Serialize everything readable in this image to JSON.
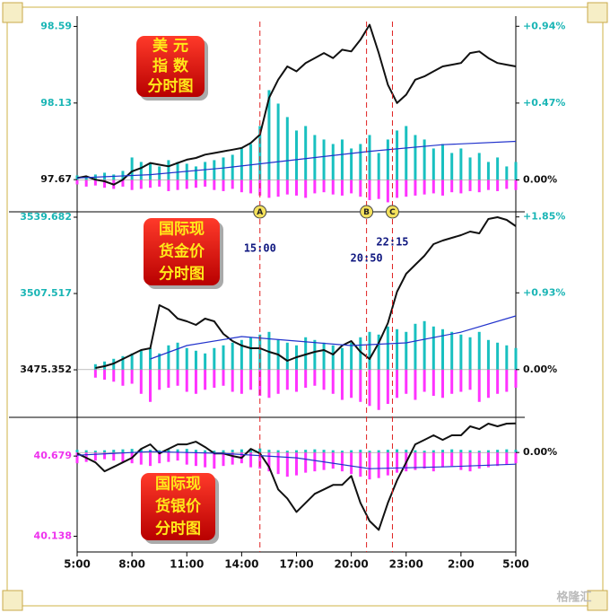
{
  "chart_data": [
    {
      "type": "line",
      "title": [
        "美  元",
        "指  数",
        "分时图"
      ],
      "ylim": [
        97.59,
        98.63
      ],
      "yticks": [
        97.67,
        98.13,
        98.59
      ],
      "y2lim": [
        -0.08,
        0.98
      ],
      "y2ticks": [
        {
          "value": 0,
          "label": "0.00%"
        },
        {
          "value": 0.47,
          "label": "+0.47%"
        },
        {
          "value": 0.94,
          "label": "+0.94%"
        }
      ],
      "tick_color": "#1ab5b5",
      "x": [
        0,
        0.5,
        1,
        1.5,
        2,
        2.5,
        3,
        3.5,
        4,
        4.5,
        5,
        5.5,
        6,
        6.5,
        7,
        7.5,
        8,
        8.5,
        9,
        9.5,
        10,
        10.5,
        11,
        11.5,
        12,
        12.5,
        13,
        13.5,
        14,
        14.5,
        15,
        15.5,
        16,
        16.5,
        17,
        17.5,
        18,
        18.5,
        19,
        19.5,
        20,
        20.5,
        21,
        21.5,
        22,
        22.5,
        23,
        23.5,
        24
      ],
      "series": [
        {
          "color": "#111111",
          "values": [
            97.68,
            97.69,
            97.67,
            97.66,
            97.64,
            97.67,
            97.72,
            97.74,
            97.77,
            97.76,
            97.75,
            97.77,
            97.79,
            97.8,
            97.82,
            97.83,
            97.84,
            97.85,
            97.86,
            97.89,
            97.94,
            98.16,
            98.27,
            98.35,
            98.32,
            98.37,
            98.4,
            98.43,
            98.4,
            98.45,
            98.44,
            98.51,
            98.6,
            98.43,
            98.24,
            98.13,
            98.18,
            98.27,
            98.29,
            98.32,
            98.35,
            98.36,
            98.37,
            98.43,
            98.44,
            98.4,
            98.37,
            98.36,
            98.35
          ]
        },
        {
          "color": "#2233cc",
          "x": [
            0,
            4,
            8,
            12,
            16,
            20,
            24
          ],
          "values": [
            97.68,
            97.7,
            97.74,
            97.79,
            97.84,
            97.88,
            97.9
          ]
        }
      ],
      "volume": {
        "up_color": "#19c0c0",
        "down_color": "#ff33ff",
        "up": [
          5,
          4,
          6,
          8,
          6,
          10,
          25,
          20,
          18,
          15,
          22,
          20,
          18,
          15,
          20,
          22,
          25,
          28,
          35,
          40,
          60,
          100,
          85,
          70,
          55,
          60,
          50,
          45,
          40,
          45,
          35,
          40,
          50,
          30,
          45,
          55,
          60,
          50,
          45,
          35,
          40,
          30,
          35,
          25,
          30,
          20,
          25,
          15,
          20
        ],
        "down": [
          20,
          30,
          25,
          35,
          40,
          30,
          45,
          40,
          35,
          30,
          50,
          45,
          40,
          35,
          30,
          45,
          50,
          40,
          55,
          60,
          70,
          80,
          75,
          65,
          70,
          80,
          60,
          55,
          65,
          70,
          60,
          75,
          90,
          85,
          100,
          80,
          75,
          70,
          65,
          60,
          70,
          55,
          60,
          50,
          55,
          45,
          50,
          40,
          45
        ]
      }
    },
    {
      "type": "line",
      "title": [
        "国际现",
        "货金价",
        "分时图"
      ],
      "ylim": [
        3459.1,
        3541.2
      ],
      "yticks": [
        3475.352,
        3507.517,
        3539.682
      ],
      "y2lim": [
        -0.47,
        1.89
      ],
      "y2ticks": [
        {
          "value": 0,
          "label": "0.00%"
        },
        {
          "value": 0.93,
          "label": "+0.93%"
        },
        {
          "value": 1.85,
          "label": "+1.85%"
        }
      ],
      "tick_color": "#1ab5b5",
      "x": [
        0,
        0.5,
        1,
        1.5,
        2,
        2.5,
        3,
        3.5,
        4,
        4.5,
        5,
        5.5,
        6,
        6.5,
        7,
        7.5,
        8,
        8.5,
        9,
        9.5,
        10,
        10.5,
        11,
        11.5,
        12,
        12.5,
        13,
        13.5,
        14,
        14.5,
        15,
        15.5,
        16,
        16.5,
        17,
        17.5,
        18,
        18.5,
        19,
        19.5,
        20,
        20.5,
        21,
        21.5,
        22,
        22.5,
        23,
        23.5,
        24
      ],
      "series": [
        {
          "color": "#111111",
          "values": [
            null,
            null,
            3476.11,
            3476.87,
            3478.0,
            3479.89,
            3481.79,
            3483.68,
            3484.43,
            3502.6,
            3500.7,
            3496.92,
            3495.79,
            3494.27,
            3496.92,
            3495.79,
            3490.49,
            3487.46,
            3485.57,
            3484.43,
            3484.43,
            3482.92,
            3481.79,
            3479.14,
            3480.65,
            3481.79,
            3482.92,
            3483.68,
            3481.79,
            3485.57,
            3487.46,
            3482.92,
            3479.89,
            3486.7,
            3495.03,
            3508.27,
            3515.84,
            3519.63,
            3523.41,
            3528.33,
            3529.84,
            3530.98,
            3532.11,
            3533.63,
            3532.87,
            3538.92,
            3539.68,
            3538.54,
            3535.89
          ]
        },
        {
          "color": "#2233cc",
          "x": [
            4,
            6,
            9,
            12,
            15,
            18,
            21,
            24
          ],
          "values": [
            3479.89,
            3485.57,
            3489.35,
            3487.46,
            3485.57,
            3486.7,
            3491.24,
            3498.06
          ]
        }
      ],
      "volume": {
        "up_color": "#19c0c0",
        "down_color": "#ff33ff",
        "up": [
          null,
          null,
          10,
          15,
          20,
          25,
          30,
          35,
          40,
          30,
          45,
          50,
          40,
          35,
          30,
          40,
          45,
          50,
          55,
          60,
          65,
          70,
          55,
          50,
          45,
          60,
          55,
          50,
          45,
          40,
          50,
          60,
          70,
          65,
          80,
          75,
          70,
          85,
          90,
          80,
          75,
          70,
          65,
          60,
          70,
          55,
          50,
          45,
          40
        ],
        "down": [
          null,
          null,
          20,
          25,
          30,
          40,
          35,
          60,
          80,
          50,
          45,
          40,
          55,
          60,
          50,
          45,
          40,
          55,
          60,
          50,
          65,
          70,
          60,
          50,
          55,
          45,
          40,
          50,
          60,
          75,
          70,
          80,
          90,
          100,
          85,
          70,
          60,
          75,
          55,
          65,
          70,
          60,
          55,
          50,
          80,
          70,
          60,
          55,
          45
        ]
      }
    },
    {
      "type": "line",
      "title": [
        "国际现",
        "货银价",
        "分时图"
      ],
      "ylim": [
        40.05,
        40.91
      ],
      "yticks": [
        40.138,
        40.679
      ],
      "y2lim": [
        -1.61,
        0.51
      ],
      "y2ticks": [
        {
          "value": 0,
          "label": "0.00%"
        }
      ],
      "tick_color": "#ee33ee",
      "xlim": [
        0,
        24
      ],
      "xticks": [
        {
          "value": 0,
          "label": "5:00"
        },
        {
          "value": 3,
          "label": "8:00"
        },
        {
          "value": 6,
          "label": "11:00"
        },
        {
          "value": 9,
          "label": "14:00"
        },
        {
          "value": 12,
          "label": "17:00"
        },
        {
          "value": 15,
          "label": "20:00"
        },
        {
          "value": 18,
          "label": "23:00"
        },
        {
          "value": 21,
          "label": "2:00"
        },
        {
          "value": 24,
          "label": "5:00"
        }
      ],
      "x": [
        0,
        0.5,
        1,
        1.5,
        2,
        2.5,
        3,
        3.5,
        4,
        4.5,
        5,
        5.5,
        6,
        6.5,
        7,
        7.5,
        8,
        8.5,
        9,
        9.5,
        10,
        10.5,
        11,
        11.5,
        12,
        12.5,
        13,
        13.5,
        14,
        14.5,
        15,
        15.5,
        16,
        16.5,
        17,
        17.5,
        18,
        18.5,
        19,
        19.5,
        20,
        20.5,
        21,
        21.5,
        22,
        22.5,
        23,
        23.5,
        24
      ],
      "series": [
        {
          "color": "#111111",
          "values": [
            40.697,
            40.667,
            40.636,
            40.576,
            40.606,
            40.636,
            40.667,
            40.728,
            40.758,
            40.697,
            40.728,
            40.758,
            40.758,
            40.776,
            40.74,
            40.697,
            40.697,
            40.679,
            40.667,
            40.728,
            40.697,
            40.606,
            40.454,
            40.393,
            40.302,
            40.363,
            40.424,
            40.454,
            40.484,
            40.484,
            40.545,
            40.363,
            40.241,
            40.181,
            40.363,
            40.515,
            40.636,
            40.758,
            40.788,
            40.819,
            40.788,
            40.819,
            40.819,
            40.88,
            40.861,
            40.898,
            40.88,
            40.898,
            40.9
          ]
        },
        {
          "color": "#2233cc",
          "x": [
            0,
            4,
            8,
            12,
            16,
            20,
            24
          ],
          "values": [
            40.685,
            40.709,
            40.697,
            40.667,
            40.594,
            40.606,
            40.624
          ]
        }
      ],
      "volume": {
        "up_color": "#19c0c0",
        "down_color": "#ff33ff",
        "up": [
          30,
          25,
          20,
          25,
          30,
          35,
          40,
          35,
          30,
          25,
          30,
          35,
          40,
          30,
          25,
          20,
          25,
          30,
          35,
          40,
          45,
          30,
          25,
          20,
          25,
          30,
          35,
          30,
          25,
          20,
          25,
          30,
          20,
          25,
          30,
          35,
          30,
          25,
          20,
          25,
          30,
          35,
          30,
          25,
          20,
          25,
          30,
          35,
          30
        ],
        "down": [
          40,
          35,
          30,
          25,
          30,
          35,
          40,
          45,
          50,
          40,
          35,
          30,
          45,
          50,
          55,
          60,
          50,
          45,
          40,
          55,
          60,
          70,
          80,
          90,
          85,
          75,
          70,
          65,
          60,
          70,
          80,
          90,
          100,
          95,
          85,
          75,
          70,
          65,
          60,
          70,
          55,
          50,
          65,
          70,
          60,
          55,
          50,
          45,
          40
        ]
      }
    }
  ],
  "markers": [
    {
      "label": "A",
      "time": "15:00",
      "x": 10
    },
    {
      "label": "B",
      "time": "20:50",
      "x": 15.833
    },
    {
      "label": "C",
      "time": "22:15",
      "x": 17.25
    }
  ],
  "watermark": "格隆汇"
}
